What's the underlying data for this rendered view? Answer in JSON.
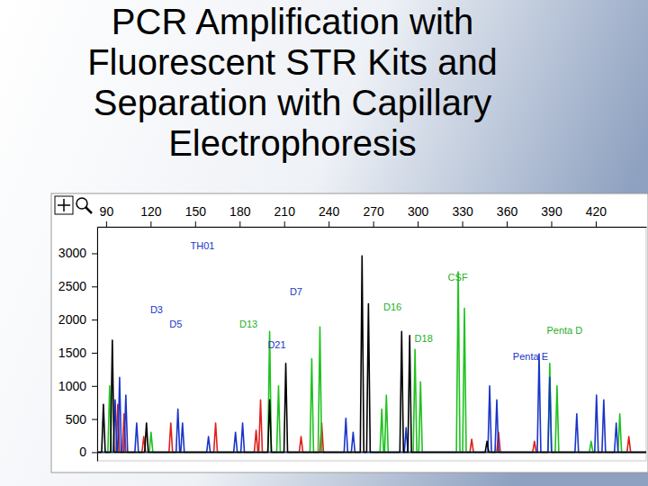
{
  "chart_data": {
    "type": "line",
    "title": [
      "PCR Amplification with",
      "Fluorescent STR Kits and",
      "Separation with Capillary",
      "Electrophoresis"
    ],
    "xlim": [
      84,
      454
    ],
    "xticks": [
      90,
      120,
      150,
      180,
      210,
      240,
      270,
      300,
      330,
      360,
      390,
      420
    ],
    "ylim": [
      -130,
      3400
    ],
    "yticks": [
      0,
      500,
      1000,
      1500,
      2000,
      2500,
      3000
    ],
    "grid": false,
    "annotations": [
      {
        "text": "TH01",
        "x": 155,
        "y": 3100,
        "color": "#1a35c8"
      },
      {
        "text": "CSF",
        "x": 327,
        "y": 2625,
        "color": "#1fae1f"
      },
      {
        "text": "D7",
        "x": 218,
        "y": 2405,
        "color": "#1a35c8"
      },
      {
        "text": "D3",
        "x": 124,
        "y": 2140,
        "color": "#1a35c8"
      },
      {
        "text": "D16",
        "x": 283,
        "y": 2180,
        "color": "#1fae1f"
      },
      {
        "text": "D5",
        "x": 137,
        "y": 1920,
        "color": "#1a35c8"
      },
      {
        "text": "D13",
        "x": 186,
        "y": 1920,
        "color": "#1fae1f"
      },
      {
        "text": "D21",
        "x": 205,
        "y": 1600,
        "color": "#1a35c8"
      },
      {
        "text": "D18",
        "x": 304,
        "y": 1700,
        "color": "#1fae1f"
      },
      {
        "text": "Penta D",
        "x": 399,
        "y": 1825,
        "color": "#1fae1f"
      },
      {
        "text": "Penta E",
        "x": 376,
        "y": 1425,
        "color": "#1a35c8"
      }
    ],
    "series": [
      {
        "color": "#e0201c",
        "x": [
          84,
          96.7,
          97.9,
          99.1,
          100.9,
          102.1,
          103.3,
          114.2,
          115.4,
          116.6,
          132.4,
          133.6,
          134.8,
          162.6,
          163.8,
          165,
          189.9,
          191.1,
          192.3,
          192.9,
          194.1,
          195.3,
          220.2,
          221.4,
          222.6,
          234.1,
          235.3,
          236.5,
          335.2,
          336.4,
          337.6,
          353.3,
          354.5,
          355.7,
          377.5,
          378.7,
          379.9,
          441.1,
          442.3,
          443.5,
          454
        ],
        "values": [
          0,
          0,
          720,
          0,
          0,
          580,
          0,
          0,
          235,
          0,
          0,
          440,
          0,
          0,
          440,
          0,
          0,
          330,
          0,
          0,
          790,
          0,
          0,
          235,
          0,
          0,
          440,
          0,
          0,
          195,
          0,
          0,
          300,
          0,
          0,
          165,
          0,
          0,
          235,
          0,
          0
        ]
      },
      {
        "color": "#1fc21f",
        "x": [
          84,
          91.2,
          92.4,
          93.6,
          119.1,
          120.3,
          121.5,
          199,
          200.2,
          201.4,
          205,
          206.2,
          207.4,
          227.4,
          228.6,
          229.8,
          232.9,
          234.1,
          235.3,
          274.6,
          275.8,
          277,
          277.7,
          278.9,
          280.1,
          297,
          298.2,
          299.4,
          300.7,
          301.9,
          303.1,
          326.1,
          327.3,
          328.5,
          330.3,
          331.5,
          332.7,
          387.8,
          389,
          390.2,
          392.7,
          393.9,
          395.1,
          415.7,
          416.9,
          418.1,
          435,
          436.2,
          437.4,
          454
        ],
        "values": [
          0,
          0,
          1000,
          0,
          0,
          300,
          0,
          0,
          1820,
          0,
          0,
          1000,
          0,
          0,
          1410,
          0,
          0,
          1890,
          0,
          0,
          650,
          0,
          0,
          860,
          0,
          0,
          1550,
          0,
          0,
          1060,
          0,
          0,
          2720,
          0,
          0,
          2170,
          0,
          0,
          1340,
          0,
          0,
          1000,
          0,
          0,
          165,
          0,
          0,
          580,
          0,
          0
        ]
      },
      {
        "color": "#1a35c8",
        "x": [
          84,
          94.9,
          96.1,
          97.3,
          97.9,
          99.1,
          100.3,
          102.1,
          103.3,
          104.5,
          109.4,
          110.6,
          111.8,
          137.2,
          138.4,
          139.6,
          140.3,
          141.5,
          142.7,
          157.8,
          159,
          160.2,
          176,
          177.2,
          178.4,
          180.8,
          182,
          183.2,
          250.4,
          251.6,
          252.8,
          255.3,
          256.5,
          257.7,
          291,
          292.2,
          293.4,
          347.3,
          348.5,
          349.7,
          352.1,
          353.3,
          354.5,
          380.6,
          381.8,
          383,
          387.8,
          389,
          390.2,
          406,
          407.2,
          408.4,
          419.3,
          420.5,
          421.7,
          424.2,
          425.4,
          426.6,
          432.6,
          433.8,
          435,
          454
        ],
        "values": [
          0,
          0,
          790,
          0,
          0,
          1130,
          0,
          0,
          860,
          0,
          0,
          440,
          0,
          0,
          650,
          0,
          0,
          440,
          0,
          0,
          235,
          0,
          0,
          300,
          0,
          0,
          440,
          0,
          0,
          510,
          0,
          0,
          300,
          0,
          0,
          370,
          0,
          0,
          1000,
          0,
          0,
          790,
          0,
          0,
          1480,
          0,
          0,
          1130,
          0,
          0,
          580,
          0,
          0,
          860,
          0,
          0,
          790,
          0,
          0,
          440,
          0,
          0
        ]
      },
      {
        "color": "#000000",
        "x": [
          84,
          87,
          88.2,
          89.4,
          93,
          94.2,
          95.4,
          116,
          117.2,
          118.4,
          199,
          200.2,
          201.4,
          209.9,
          211.1,
          212.3,
          261.3,
          262.5,
          263.7,
          265.6,
          266.8,
          268,
          288,
          289.2,
          290.4,
          293.4,
          294.6,
          295.8,
          345.5,
          346.7,
          347.9,
          454
        ],
        "values": [
          0,
          0,
          720,
          0,
          0,
          1690,
          0,
          0,
          440,
          0,
          0,
          790,
          0,
          0,
          1340,
          0,
          0,
          2960,
          0,
          0,
          2240,
          0,
          0,
          1820,
          0,
          0,
          1760,
          0,
          0,
          165,
          0,
          0
        ]
      }
    ]
  }
}
